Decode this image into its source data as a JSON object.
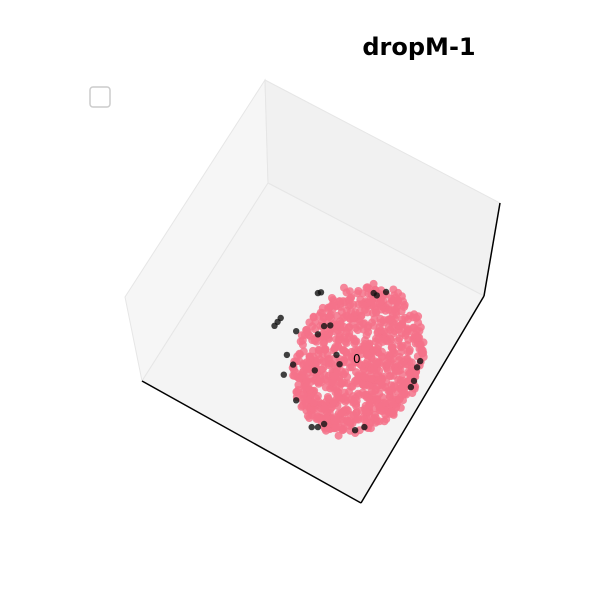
{
  "chart_data": {
    "type": "scatter",
    "projection": "3d",
    "title": "dropM-1",
    "legend": {
      "placement": "top-left",
      "entries": []
    },
    "grid": false,
    "annotations": [
      {
        "text": "0",
        "x": 0,
        "y": 0,
        "z": 0
      }
    ],
    "colors": {
      "cluster_0": "#f4728a",
      "outlier": "#111111",
      "pane_left": "#f6f6f6",
      "pane_back": "#f1f1f1",
      "pane_floor": "#f4f4f4"
    },
    "series": [
      {
        "cluster": "0",
        "color": "#f4728a",
        "point_count": 900
      },
      {
        "cluster": "outlier",
        "color": "#111111",
        "points": [
          [
            -0.55,
            0.95,
            0.2
          ],
          [
            -0.5,
            0.93,
            0.25
          ],
          [
            0.35,
            0.95,
            0.2
          ],
          [
            0.4,
            0.9,
            0.22
          ],
          [
            0.55,
            0.98,
            0.18
          ],
          [
            -1.2,
            0.55,
            0.1
          ],
          [
            -1.15,
            0.6,
            0.12
          ],
          [
            -1.25,
            0.5,
            0.08
          ],
          [
            -0.9,
            0.4,
            0.1
          ],
          [
            -0.45,
            0.45,
            0.15
          ],
          [
            -0.35,
            0.48,
            0.12
          ],
          [
            -0.55,
            0.35,
            0.1
          ],
          [
            -1.05,
            0.05,
            0.05
          ],
          [
            -1.1,
            -0.25,
            0.02
          ],
          [
            -0.95,
            -0.1,
            0.04
          ],
          [
            -0.6,
            -0.2,
            0.05
          ],
          [
            1.05,
            -0.15,
            0.05
          ],
          [
            1.1,
            -0.05,
            0.05
          ],
          [
            1.0,
            -0.35,
            0.02
          ],
          [
            0.95,
            -0.45,
            0.02
          ],
          [
            -0.9,
            -0.65,
            0.0
          ],
          [
            -0.55,
            -1.05,
            -0.05
          ],
          [
            -0.45,
            -1.0,
            -0.05
          ],
          [
            -0.65,
            -1.05,
            -0.05
          ],
          [
            0.05,
            -1.1,
            -0.05
          ],
          [
            0.2,
            -1.05,
            -0.05
          ],
          [
            -0.25,
            0.05,
            0.05
          ],
          [
            -0.2,
            -0.1,
            0.05
          ]
        ]
      }
    ]
  }
}
